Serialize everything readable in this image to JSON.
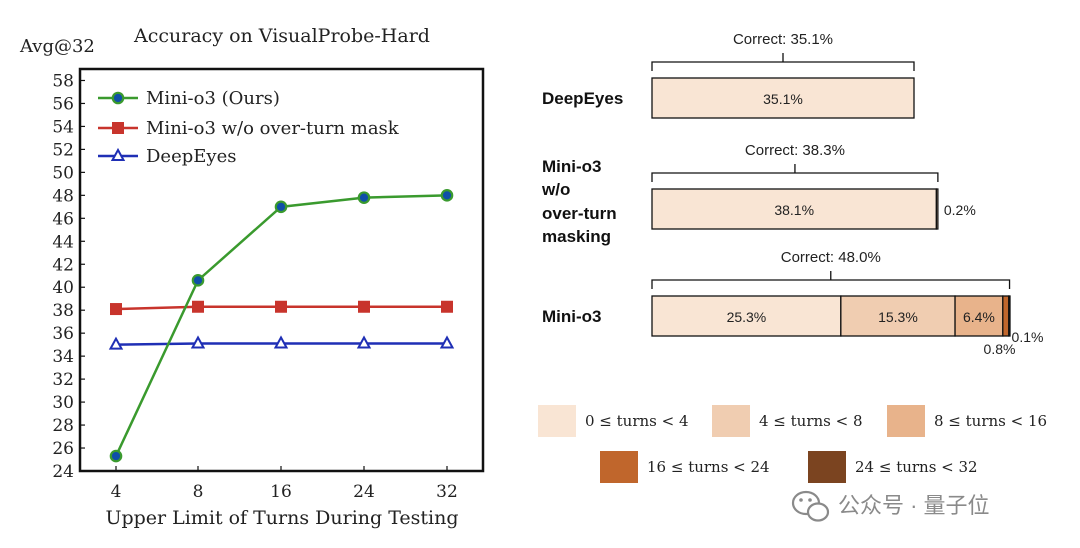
{
  "colors": {
    "green": "#3a9a2e",
    "green_fill": "#0f4fa8",
    "red": "#c8342c",
    "blue": "#1f2fb5",
    "bin0": "#f9e5d4",
    "bin1": "#f0cdb1",
    "bin2": "#e8b38b",
    "bin3": "#c0662c",
    "bin4": "#7b4420",
    "watermark": "#8a8a8a"
  },
  "chart_data": [
    {
      "type": "line",
      "title": "Accuracy on VisualProbe-Hard",
      "ylabel": "Avg@32",
      "xlabel": "Upper Limit of Turns During Testing",
      "x": [
        "4",
        "8",
        "16",
        "24",
        "32"
      ],
      "ylim": [
        24,
        59
      ],
      "yticks": [
        24,
        26,
        28,
        30,
        32,
        34,
        36,
        38,
        40,
        42,
        44,
        46,
        48,
        50,
        52,
        54,
        56,
        58
      ],
      "grid": false,
      "legend": "top-left",
      "series": [
        {
          "name": "Mini-o3 (Ours)",
          "color": "green",
          "marker": "circle",
          "values": [
            25.3,
            40.6,
            47.0,
            47.8,
            48.0
          ]
        },
        {
          "name": "Mini-o3 w/o over-turn mask",
          "color": "red",
          "marker": "square",
          "values": [
            38.1,
            38.3,
            38.3,
            38.3,
            38.3
          ]
        },
        {
          "name": "DeepEyes",
          "color": "blue",
          "marker": "triangle",
          "values": [
            35.0,
            35.1,
            35.1,
            35.1,
            35.1
          ]
        }
      ]
    },
    {
      "type": "bar",
      "orientation": "horizontal-stacked",
      "legend": "bottom",
      "categories": [
        {
          "label_lines": [
            "DeepEyes"
          ],
          "correct": "Correct: 35.1%",
          "segments": [
            35.1,
            0,
            0,
            0,
            0
          ],
          "labels": [
            "35.1%",
            "",
            "",
            "",
            ""
          ]
        },
        {
          "label_lines": [
            "Mini-o3",
            "w/o",
            "over-turn",
            "masking"
          ],
          "correct": "Correct: 38.3%",
          "segments": [
            38.1,
            0.2,
            0,
            0,
            0
          ],
          "labels": [
            "38.1%",
            "0.2%",
            "",
            "",
            ""
          ]
        },
        {
          "label_lines": [
            "Mini-o3"
          ],
          "correct": "Correct: 48.0%",
          "segments": [
            25.3,
            15.3,
            6.4,
            0.8,
            0.1
          ],
          "labels": [
            "25.3%",
            "15.3%",
            "6.4%",
            "0.8%",
            "0.1%"
          ]
        }
      ],
      "bins": [
        "0 ≤ turns < 4",
        "4 ≤ turns < 8",
        "8 ≤ turns < 16",
        "16 ≤ turns < 24",
        "24 ≤ turns < 32"
      ]
    }
  ],
  "watermark": {
    "text": "公众号 · 量子位",
    "icon": "wechat-icon"
  }
}
